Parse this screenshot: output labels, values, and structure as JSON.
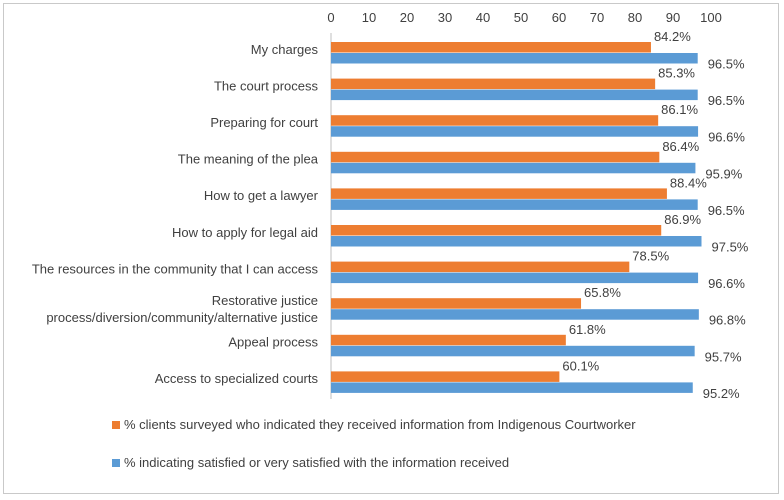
{
  "chart_data": {
    "type": "bar",
    "orientation": "horizontal",
    "title": "",
    "xlabel": "",
    "ylabel": "",
    "xlim": [
      0,
      100
    ],
    "x_ticks": [
      0,
      10,
      20,
      30,
      40,
      50,
      60,
      70,
      80,
      90,
      100
    ],
    "x_axis_position": "top",
    "grid": false,
    "legend_position": "bottom",
    "categories": [
      "My charges",
      "The court process",
      "Preparing for court",
      "The meaning of the plea",
      "How to get a lawyer",
      "How to apply for legal aid",
      "The resources in the community that I can access",
      [
        "Restorative justice",
        "process/diversion/community/alternative justice"
      ],
      "Appeal process",
      "Access to specialized courts"
    ],
    "series": [
      {
        "name": "% clients surveyed who indicated they received information from Indigenous Courtworker",
        "color": "#ED7D31",
        "values": [
          84.2,
          85.3,
          86.1,
          86.4,
          88.4,
          86.9,
          78.5,
          65.8,
          61.8,
          60.1
        ],
        "labels": [
          "84.2%",
          "85.3%",
          "86.1%",
          "86.4%",
          "88.4%",
          "86.9%",
          "78.5%",
          "65.8%",
          "61.8%",
          "60.1%"
        ]
      },
      {
        "name": "% indicating satisfied or very satisfied with the information received",
        "color": "#5B9BD5",
        "values": [
          96.5,
          96.5,
          96.6,
          95.9,
          96.5,
          97.5,
          96.6,
          96.8,
          95.7,
          95.2
        ],
        "labels": [
          "96.5%",
          "96.5%",
          "96.6%",
          "95.9%",
          "96.5%",
          "97.5%",
          "96.6%",
          "96.8%",
          "95.7%",
          "95.2%"
        ]
      }
    ]
  }
}
